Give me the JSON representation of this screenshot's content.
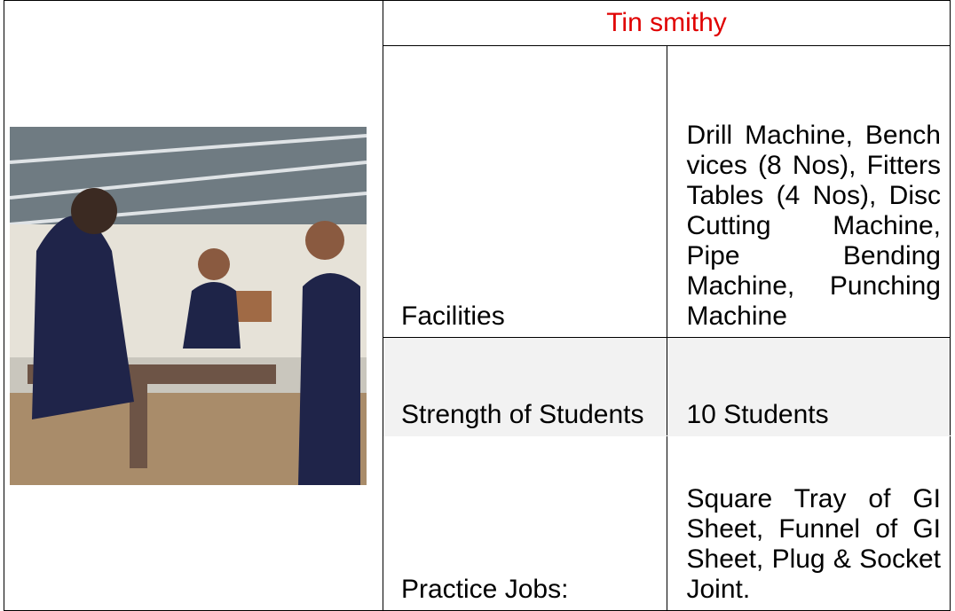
{
  "table": {
    "title": "Tin smithy",
    "rows": [
      [
        "Facilities",
        "Drill Machine, Bench vices (8 Nos), Fitters Tables (4 Nos), Disc Cutting Machine, Pipe Bending Machine, Punching Machine"
      ],
      [
        "Strength of Students",
        "10 Students"
      ],
      [
        "Practice Jobs:",
        "Square Tray of GI Sheet, Funnel of GI Sheet, Plug & Socket Joint."
      ]
    ]
  }
}
